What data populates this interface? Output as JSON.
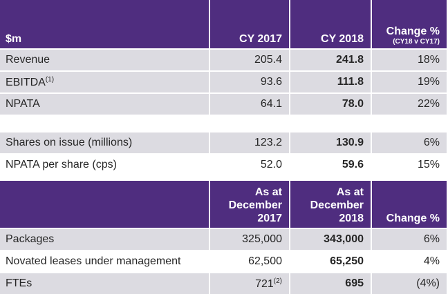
{
  "table1": {
    "headers": {
      "label": "$m",
      "cy2017": "CY 2017",
      "cy2018": "CY 2018",
      "change": "Change %",
      "change_sub": "(CY18 v CY17)"
    },
    "rows": [
      {
        "label": "Revenue",
        "sup": "",
        "cy2017": "205.4",
        "cy2018": "241.8",
        "change": "18%"
      },
      {
        "label": "EBITDA",
        "sup": "(1)",
        "cy2017": "93.6",
        "cy2018": "111.8",
        "change": "19%"
      },
      {
        "label": "NPATA",
        "sup": "",
        "cy2017": "64.1",
        "cy2018": "78.0",
        "change": "22%"
      }
    ]
  },
  "table2": {
    "rows": [
      {
        "label": "Shares on issue (millions)",
        "cy2017": "123.2",
        "cy2018": "130.9",
        "change": "6%"
      },
      {
        "label": "NPATA per share (cps)",
        "cy2017": "52.0",
        "cy2018": "59.6",
        "change": "15%"
      }
    ]
  },
  "table3": {
    "headers": {
      "label": "",
      "dec2017_l1": "As at",
      "dec2017_l2": "December",
      "dec2017_l3": "2017",
      "dec2018_l1": "As at",
      "dec2018_l2": "December",
      "dec2018_l3": "2018",
      "change": "Change %"
    },
    "rows": [
      {
        "label": "Packages",
        "v2017": "325,000",
        "sup": "",
        "v2018": "343,000",
        "change": "6%"
      },
      {
        "label": "Novated leases under management",
        "v2017": "62,500",
        "sup": "",
        "v2018": "65,250",
        "change": "4%"
      },
      {
        "label": "FTEs",
        "v2017": "721",
        "sup": "(2)",
        "v2018": "695",
        "change": "(4%)"
      }
    ]
  }
}
